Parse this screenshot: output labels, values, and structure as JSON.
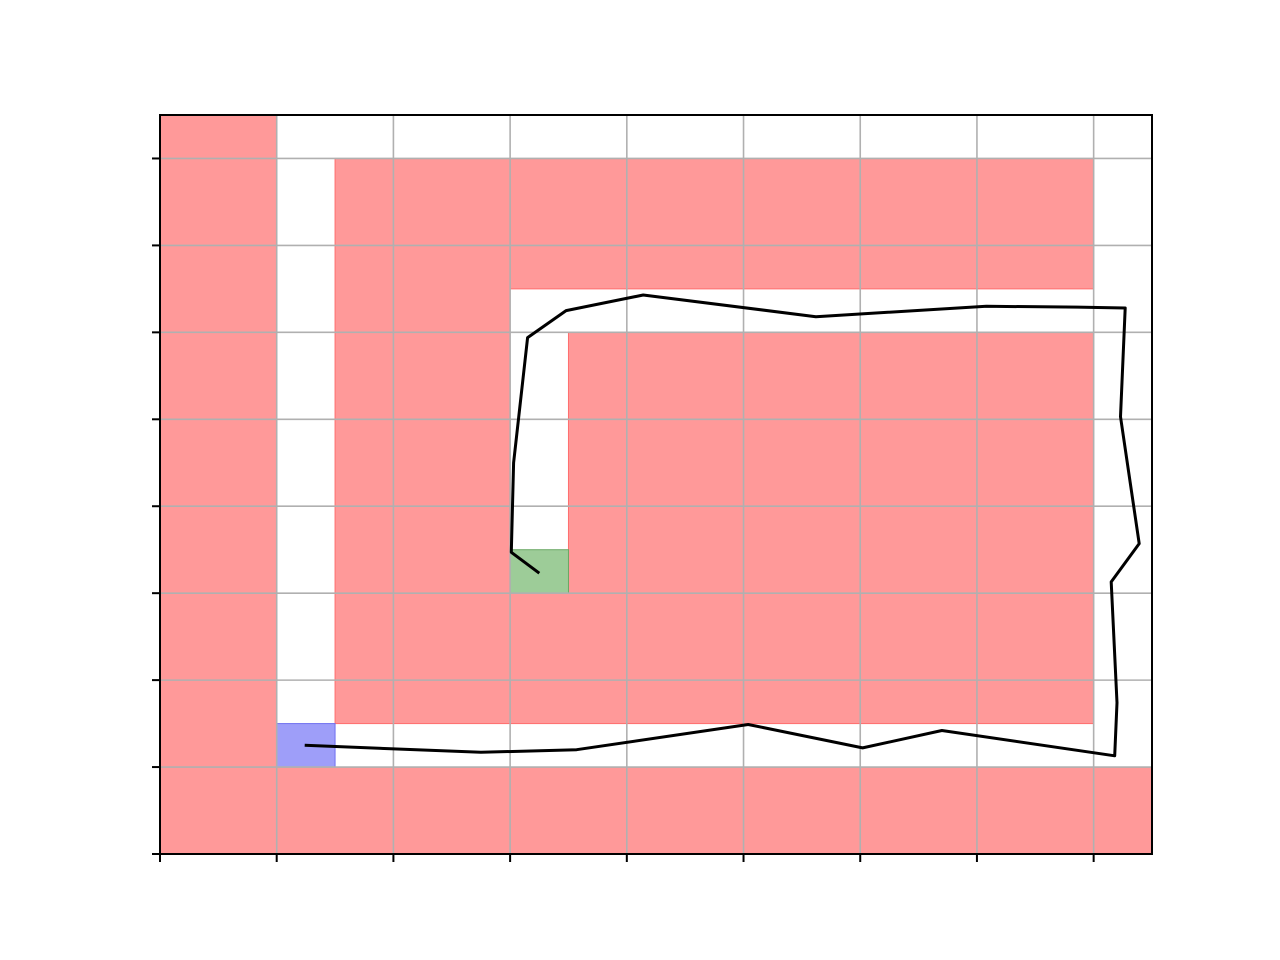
{
  "chart_data": {
    "type": "area",
    "description_kind": "occupancy-grid path plot",
    "xlim": [
      0,
      8.5
    ],
    "ylim": [
      0,
      8.5
    ],
    "xticks": [
      0,
      1,
      2,
      3,
      4,
      5,
      6,
      7,
      8
    ],
    "yticks": [
      0,
      1,
      2,
      3,
      4,
      5,
      6,
      7,
      8
    ],
    "tick_labels_visible": false,
    "grid": true,
    "obstacles": [
      {
        "x0": 0,
        "x1": 1,
        "y0": 0,
        "y1": 8.5
      },
      {
        "x0": 0,
        "x1": 8.5,
        "y0": 0,
        "y1": 1
      },
      {
        "x0": 1.5,
        "x1": 3,
        "y0": 1.5,
        "y1": 8
      },
      {
        "x0": 3,
        "x1": 8,
        "y0": 6.5,
        "y1": 8
      },
      {
        "x0": 3.5,
        "x1": 8,
        "y0": 3,
        "y1": 6
      },
      {
        "x0": 3,
        "x1": 8,
        "y0": 1.5,
        "y1": 3
      }
    ],
    "start": {
      "x0": 1,
      "x1": 1.5,
      "y0": 1,
      "y1": 1.5
    },
    "goal": {
      "x0": 3,
      "x1": 3.5,
      "y0": 3,
      "y1": 3.5
    },
    "path": {
      "x": [
        1.24,
        2.75,
        3.57,
        5.04,
        6.02,
        6.7,
        8.18,
        8.2,
        8.15,
        8.39,
        8.23,
        8.27,
        7.86,
        7.08,
        5.62,
        4.14,
        3.48,
        3.15,
        3.03,
        3.01,
        3.25
      ],
      "y": [
        1.25,
        1.17,
        1.2,
        1.49,
        1.22,
        1.42,
        1.13,
        1.74,
        3.13,
        3.57,
        5.03,
        6.28,
        6.29,
        6.3,
        6.18,
        6.43,
        6.25,
        5.94,
        4.5,
        3.47,
        3.23
      ]
    },
    "colors": {
      "obstacle": "#ff9999",
      "obstacle_edge": "#ff6e6e",
      "start": "#9e9ef9",
      "start_edge": "#6e6ef0",
      "goal": "#9dcc98",
      "goal_edge": "#6aa864",
      "path": "#000000",
      "grid": "#b0b0b0",
      "axes": "#000000"
    }
  }
}
